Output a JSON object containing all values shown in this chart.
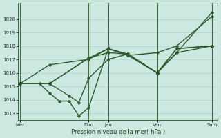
{
  "xlabel": "Pression niveau de la mer( hPa )",
  "background_color": "#cce8e0",
  "plot_bg_color": "#cce8e0",
  "grid_color": "#b0d8d0",
  "line_color": "#2d5a2d",
  "ylim": [
    1012.5,
    1021.2
  ],
  "xlim": [
    -0.1,
    10.1
  ],
  "yticks": [
    1013,
    1014,
    1015,
    1016,
    1017,
    1018,
    1019,
    1020
  ],
  "day_ticks_x": [
    0.0,
    3.5,
    4.5,
    7.0,
    9.8
  ],
  "day_labels": [
    "Mer",
    "Dim",
    "Jeu",
    "Ven",
    "Sam"
  ],
  "series": [
    {
      "x": [
        0,
        1.5,
        3.5,
        4.5,
        5.5,
        7.0,
        8.0,
        9.8
      ],
      "y": [
        1015.2,
        1016.6,
        1017.0,
        1017.8,
        1017.3,
        1017.5,
        1018.0,
        1020.2
      ]
    },
    {
      "x": [
        0,
        1.5,
        3.5,
        4.5,
        5.5,
        7.0,
        8.0,
        9.8
      ],
      "y": [
        1015.2,
        1015.2,
        1017.1,
        1017.8,
        1017.4,
        1016.0,
        1017.8,
        1018.0
      ]
    },
    {
      "x": [
        0,
        1.5,
        3.5,
        4.5,
        5.5,
        7.0,
        8.0,
        9.8
      ],
      "y": [
        1015.2,
        1015.2,
        1017.1,
        1017.5,
        1017.4,
        1016.0,
        1017.8,
        1018.0
      ]
    },
    {
      "x": [
        0,
        1.5,
        2.5,
        3.0,
        3.5,
        4.5,
        5.5,
        7.0,
        8.0,
        9.8
      ],
      "y": [
        1015.2,
        1015.2,
        1014.3,
        1013.8,
        1015.6,
        1017.0,
        1017.4,
        1016.0,
        1017.5,
        1018.0
      ]
    },
    {
      "x": [
        0,
        1.0,
        1.5,
        2.0,
        2.5,
        3.0,
        3.5,
        4.5,
        5.5,
        7.0,
        8.0,
        9.8
      ],
      "y": [
        1015.2,
        1015.2,
        1014.5,
        1013.9,
        1013.9,
        1012.8,
        1013.4,
        1017.8,
        1017.3,
        1016.0,
        1017.5,
        1020.5
      ]
    }
  ],
  "marker": "D",
  "markersize": 2.5,
  "linewidth": 1.0
}
